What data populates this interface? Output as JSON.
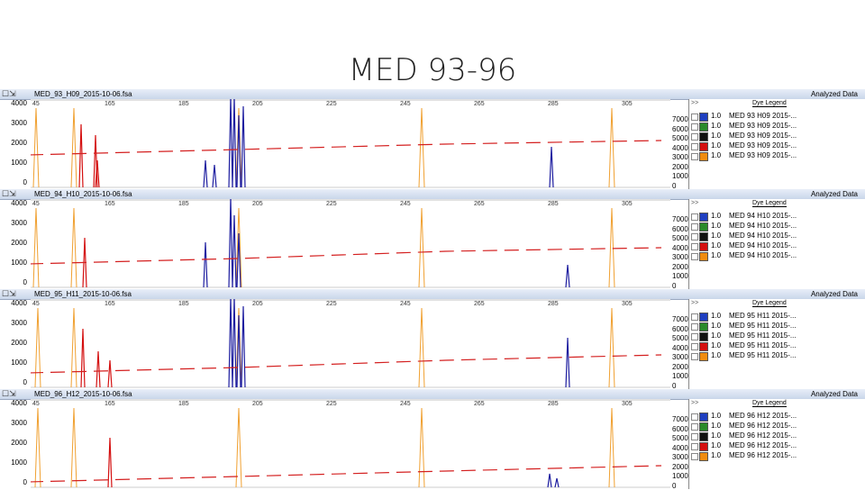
{
  "slide_title": "MED 93-96",
  "panels": [
    {
      "file": "MED_93_H09_2015-10-06.fsa",
      "label": "MED 93",
      "well": "H09"
    },
    {
      "file": "MED_94_H10_2015-10-06.fsa",
      "label": "MED 94",
      "well": "H10"
    },
    {
      "file": "MED_95_H11_2015-10-06.fsa",
      "label": "MED 95",
      "well": "H11"
    },
    {
      "file": "MED_96_H12_2015-10-06.fsa",
      "label": "MED 96",
      "well": "H12"
    }
  ],
  "labels": {
    "analyzed_data": "Analyzed Data",
    "dye_legend": "Dye Legend",
    "expand": ">>",
    "legend_value": "1.0"
  },
  "legend_items": [
    {
      "color": "#1f3fbf",
      "text_suffix": " 2015-..."
    },
    {
      "color": "#2a8a2a",
      "text_suffix": " 2015-..."
    },
    {
      "color": "#111111",
      "text_suffix": " 2015-..."
    },
    {
      "color": "#d41010",
      "text_suffix": " 2015-..."
    },
    {
      "color": "#f08c10",
      "text_suffix": " 2015-..."
    }
  ],
  "left_axis": [
    "4000",
    "3000",
    "2000",
    "1000",
    "0"
  ],
  "right_axis": [
    "7000",
    "6000",
    "5000",
    "4000",
    "3000",
    "2000",
    "1000",
    "0"
  ],
  "size_ticks": [
    "45",
    "165",
    "185",
    "205",
    "225",
    "245",
    "265",
    "285",
    "305"
  ],
  "colors": {
    "blue": "#1e1ea0",
    "red": "#d41010",
    "orange": "#f0a030",
    "dash": "#d42020"
  }
}
